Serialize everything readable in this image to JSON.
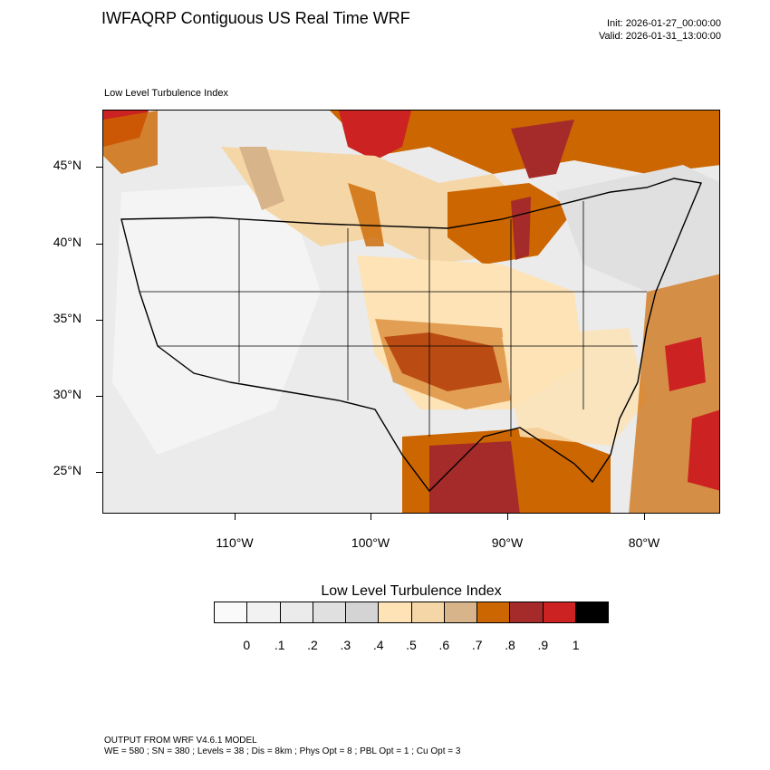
{
  "header": {
    "title": "IWFAQRP Contiguous US Real Time WRF",
    "init": "Init: 2026-01-27_00:00:00",
    "valid": "Valid: 2026-01-31_13:00:00"
  },
  "map": {
    "subtitle": "Low Level Turbulence Index",
    "lat_labels": [
      "45°N",
      "40°N",
      "35°N",
      "30°N",
      "25°N"
    ],
    "lon_labels": [
      "110°W",
      "100°W",
      "90°W",
      "80°W"
    ]
  },
  "legend": {
    "title": "Low Level Turbulence Index",
    "ticks": [
      "0",
      ".1",
      ".2",
      ".3",
      ".4",
      ".5",
      ".6",
      ".7",
      ".8",
      ".9",
      "1"
    ],
    "colors": [
      "#fafafa",
      "#f2f2f2",
      "#ebebeb",
      "#e0e0e0",
      "#d4d4d4",
      "#fde3b5",
      "#f5d6a6",
      "#d7b48a",
      "#cc6600",
      "#a52a2a",
      "#cc2222",
      "#000000"
    ]
  },
  "footer": {
    "line1": "OUTPUT FROM WRF V4.6.1 MODEL",
    "line2": "WE = 580 ; SN = 380 ; Levels = 38 ; Dis = 8km ; Phys Opt = 8 ; PBL Opt = 1 ; Cu Opt = 3"
  }
}
